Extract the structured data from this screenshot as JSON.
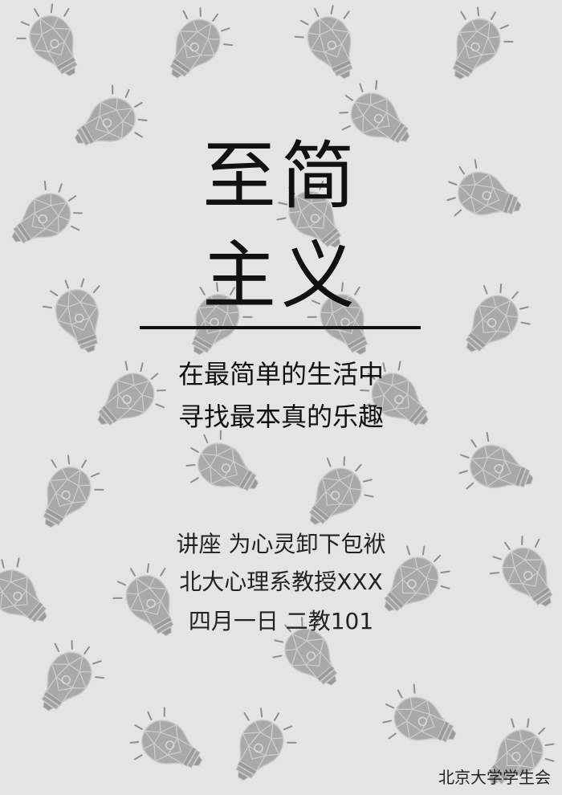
{
  "poster": {
    "title_line1": "至简",
    "title_line2": "主义",
    "subtitle_line1": "在最简单的生活中",
    "subtitle_line2": "寻找最本真的乐趣",
    "lecture_line": "讲座 为心灵卸下包袱",
    "speaker_line": "北大心理系教授XXX",
    "time_place_line": "四月一日 二教101",
    "organizer": "北京大学学生会"
  },
  "background": {
    "color": "#e4e4e4",
    "pattern_icon": "lightbulb-icon",
    "pattern_color": "#a8a8a8"
  }
}
